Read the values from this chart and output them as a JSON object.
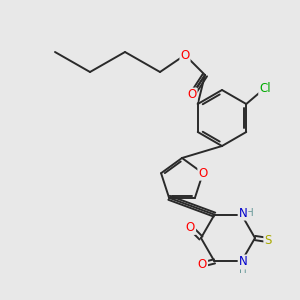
{
  "background_color": "#e8e8e8",
  "bond_color": "#2a2a2a",
  "bond_width": 1.4,
  "atom_colors": {
    "O": "#ff0000",
    "N": "#0000cc",
    "S": "#aaaa00",
    "Cl": "#00aa00",
    "H": "#6a9a9a",
    "C": "#2a2a2a"
  },
  "font_size": 8.5,
  "fig_size": [
    3.0,
    3.0
  ],
  "dpi": 100
}
